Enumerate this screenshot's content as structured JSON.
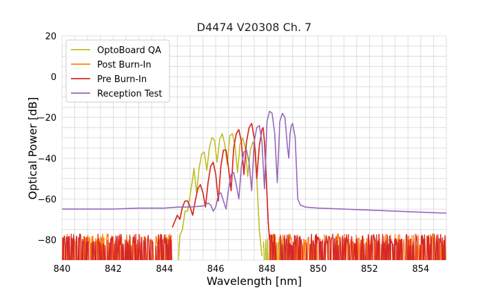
{
  "chart_data": {
    "type": "line",
    "title": "D4474 V20308 Ch. 7",
    "xlabel": "Wavelength [nm]",
    "ylabel": "Optical Power [dB]",
    "xlim": [
      840,
      855
    ],
    "ylim": [
      -90,
      20
    ],
    "xticks": [
      "840",
      "842",
      "844",
      "846",
      "848",
      "850",
      "852",
      "854"
    ],
    "yticks": [
      "20",
      "0",
      "−20",
      "−40",
      "−60",
      "−80"
    ],
    "grid": true,
    "legend_position": "top-left",
    "series": [
      {
        "name": "OptoBoard QA",
        "color": "#bcbd22",
        "noise_floor": {
          "x_ranges": [
            [
              844.55,
              844.6
            ],
            [
              847.85,
              848.9
            ]
          ],
          "level": -85
        },
        "points": [
          [
            844.55,
            -88
          ],
          [
            844.6,
            -78
          ],
          [
            844.7,
            -75
          ],
          [
            844.8,
            -66
          ],
          [
            844.9,
            -66
          ],
          [
            845.0,
            -58
          ],
          [
            845.1,
            -50
          ],
          [
            845.15,
            -45
          ],
          [
            845.25,
            -57
          ],
          [
            845.35,
            -45
          ],
          [
            845.45,
            -38
          ],
          [
            845.55,
            -37
          ],
          [
            845.65,
            -46
          ],
          [
            845.75,
            -35
          ],
          [
            845.85,
            -30
          ],
          [
            845.95,
            -31
          ],
          [
            846.05,
            -42
          ],
          [
            846.15,
            -31
          ],
          [
            846.25,
            -28
          ],
          [
            846.35,
            -33
          ],
          [
            846.45,
            -43
          ],
          [
            846.55,
            -29
          ],
          [
            846.65,
            -28
          ],
          [
            846.75,
            -34
          ],
          [
            846.85,
            -47
          ],
          [
            846.95,
            -33
          ],
          [
            847.05,
            -30
          ],
          [
            847.15,
            -35
          ],
          [
            847.25,
            -49
          ],
          [
            847.35,
            -36
          ],
          [
            847.45,
            -32
          ],
          [
            847.55,
            -36
          ],
          [
            847.62,
            -55
          ],
          [
            847.7,
            -75
          ],
          [
            847.8,
            -88
          ]
        ]
      },
      {
        "name": "Post Burn-In",
        "color": "#ff7f0e",
        "noise_floor": {
          "x_ranges": [
            [
              840.0,
              844.3
            ],
            [
              848.1,
              855.0
            ]
          ],
          "level": -83
        },
        "points": [
          [
            844.3,
            -74
          ],
          [
            844.4,
            -71
          ],
          [
            844.5,
            -68
          ],
          [
            844.6,
            -70
          ],
          [
            844.7,
            -64
          ],
          [
            844.8,
            -61
          ],
          [
            844.9,
            -61
          ],
          [
            845.0,
            -64
          ],
          [
            845.1,
            -68
          ],
          [
            845.2,
            -61
          ],
          [
            845.3,
            -55
          ],
          [
            845.4,
            -53
          ],
          [
            845.5,
            -57
          ],
          [
            845.6,
            -64
          ],
          [
            845.7,
            -52
          ],
          [
            845.8,
            -44
          ],
          [
            845.9,
            -42
          ],
          [
            846.0,
            -48
          ],
          [
            846.1,
            -61
          ],
          [
            846.2,
            -44
          ],
          [
            846.3,
            -36
          ],
          [
            846.4,
            -36
          ],
          [
            846.5,
            -45
          ],
          [
            846.6,
            -56
          ],
          [
            846.7,
            -35
          ],
          [
            846.8,
            -28
          ],
          [
            846.9,
            -26
          ],
          [
            847.0,
            -32
          ],
          [
            847.1,
            -48
          ],
          [
            847.2,
            -32
          ],
          [
            847.3,
            -25
          ],
          [
            847.4,
            -23
          ],
          [
            847.5,
            -30
          ],
          [
            847.6,
            -50
          ],
          [
            847.7,
            -34
          ],
          [
            847.8,
            -26
          ],
          [
            847.85,
            -25
          ],
          [
            847.9,
            -32
          ],
          [
            848.0,
            -58
          ],
          [
            848.05,
            -72
          ],
          [
            848.1,
            -80
          ]
        ]
      },
      {
        "name": "Pre Burn-In",
        "color": "#d62728",
        "noise_floor": {
          "x_ranges": [
            [
              840.0,
              844.3
            ],
            [
              848.1,
              855.0
            ]
          ],
          "level": -83
        },
        "points": [
          [
            844.3,
            -74
          ],
          [
            844.4,
            -71
          ],
          [
            844.5,
            -68
          ],
          [
            844.6,
            -70
          ],
          [
            844.7,
            -64
          ],
          [
            844.8,
            -61
          ],
          [
            844.9,
            -61
          ],
          [
            845.0,
            -64
          ],
          [
            845.1,
            -68
          ],
          [
            845.2,
            -61
          ],
          [
            845.3,
            -55
          ],
          [
            845.4,
            -53
          ],
          [
            845.5,
            -57
          ],
          [
            845.6,
            -64
          ],
          [
            845.7,
            -52
          ],
          [
            845.8,
            -44
          ],
          [
            845.9,
            -42
          ],
          [
            846.0,
            -48
          ],
          [
            846.1,
            -61
          ],
          [
            846.2,
            -44
          ],
          [
            846.3,
            -36
          ],
          [
            846.4,
            -36
          ],
          [
            846.5,
            -45
          ],
          [
            846.6,
            -56
          ],
          [
            846.7,
            -35
          ],
          [
            846.8,
            -28
          ],
          [
            846.9,
            -26
          ],
          [
            847.0,
            -32
          ],
          [
            847.1,
            -48
          ],
          [
            847.2,
            -32
          ],
          [
            847.3,
            -25
          ],
          [
            847.4,
            -23
          ],
          [
            847.5,
            -30
          ],
          [
            847.6,
            -50
          ],
          [
            847.7,
            -34
          ],
          [
            847.8,
            -26
          ],
          [
            847.85,
            -25
          ],
          [
            847.9,
            -32
          ],
          [
            848.0,
            -58
          ],
          [
            848.05,
            -72
          ],
          [
            848.1,
            -80
          ]
        ]
      },
      {
        "name": "Reception Test",
        "color": "#9467bd",
        "points": [
          [
            840.0,
            -65
          ],
          [
            841.0,
            -65
          ],
          [
            842.0,
            -65
          ],
          [
            843.0,
            -64.5
          ],
          [
            843.5,
            -64.5
          ],
          [
            844.0,
            -64.5
          ],
          [
            844.5,
            -64
          ],
          [
            845.0,
            -64
          ],
          [
            845.5,
            -63.5
          ],
          [
            845.7,
            -62
          ],
          [
            845.8,
            -63
          ],
          [
            845.9,
            -66
          ],
          [
            846.0,
            -64
          ],
          [
            846.1,
            -58
          ],
          [
            846.2,
            -57
          ],
          [
            846.3,
            -61
          ],
          [
            846.4,
            -65
          ],
          [
            846.5,
            -55
          ],
          [
            846.6,
            -48
          ],
          [
            846.7,
            -47
          ],
          [
            846.8,
            -53
          ],
          [
            846.9,
            -60
          ],
          [
            847.0,
            -44
          ],
          [
            847.1,
            -37
          ],
          [
            847.2,
            -36
          ],
          [
            847.3,
            -42
          ],
          [
            847.4,
            -56
          ],
          [
            847.5,
            -32
          ],
          [
            847.6,
            -25
          ],
          [
            847.7,
            -24
          ],
          [
            847.8,
            -32
          ],
          [
            847.9,
            -55
          ],
          [
            848.0,
            -22
          ],
          [
            848.1,
            -17
          ],
          [
            848.2,
            -18
          ],
          [
            848.3,
            -28
          ],
          [
            848.4,
            -52
          ],
          [
            848.5,
            -22
          ],
          [
            848.6,
            -18
          ],
          [
            848.7,
            -20
          ],
          [
            848.8,
            -35
          ],
          [
            848.85,
            -40
          ],
          [
            848.9,
            -28
          ],
          [
            848.95,
            -24
          ],
          [
            849.0,
            -23
          ],
          [
            849.1,
            -30
          ],
          [
            849.15,
            -45
          ],
          [
            849.2,
            -60
          ],
          [
            849.3,
            -63
          ],
          [
            849.5,
            -64
          ],
          [
            850.0,
            -64.5
          ],
          [
            851.0,
            -65
          ],
          [
            852.0,
            -65.5
          ],
          [
            853.0,
            -66
          ],
          [
            854.0,
            -66.5
          ],
          [
            855.0,
            -67
          ]
        ]
      }
    ]
  }
}
